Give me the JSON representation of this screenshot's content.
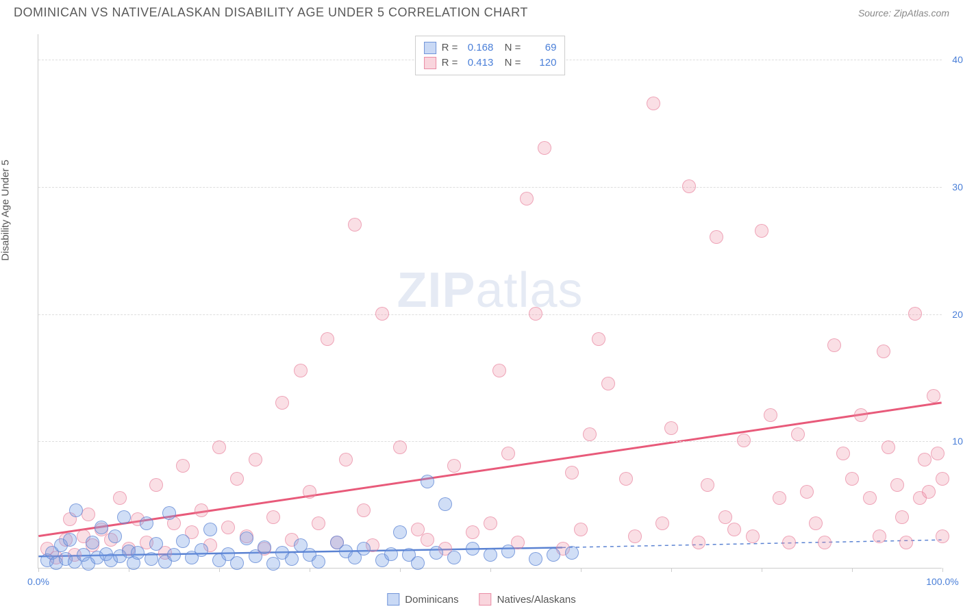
{
  "header": {
    "title": "DOMINICAN VS NATIVE/ALASKAN DISABILITY AGE UNDER 5 CORRELATION CHART",
    "source": "Source: ZipAtlas.com"
  },
  "y_axis_label": "Disability Age Under 5",
  "watermark": {
    "part1": "ZIP",
    "part2": "atlas"
  },
  "chart": {
    "type": "scatter",
    "xlim": [
      0,
      100
    ],
    "ylim": [
      0,
      42
    ],
    "x_ticks": [
      0,
      10,
      20,
      30,
      40,
      50,
      60,
      70,
      80,
      90,
      100
    ],
    "x_tick_labels": {
      "0": "0.0%",
      "100": "100.0%"
    },
    "y_ticks": [
      10,
      20,
      30,
      40
    ],
    "y_tick_labels": {
      "10": "10.0%",
      "20": "20.0%",
      "30": "30.0%",
      "40": "40.0%"
    },
    "background_color": "#ffffff",
    "grid_color": "#dddddd",
    "axis_color": "#cccccc",
    "marker_radius": 10,
    "series": [
      {
        "name": "Dominicans",
        "color_fill": "rgba(120,160,230,0.35)",
        "color_stroke": "rgba(90,130,210,0.7)",
        "R": "0.168",
        "N": "69",
        "trend": {
          "x1": 0,
          "y1": 0.9,
          "x2": 58,
          "y2": 1.6,
          "dash_after_x": 58,
          "x3": 100,
          "y3": 2.2,
          "stroke": "#5a82d2",
          "width": 2.5
        },
        "points": [
          [
            1,
            0.6
          ],
          [
            1.5,
            1.2
          ],
          [
            2,
            0.4
          ],
          [
            2.5,
            1.8
          ],
          [
            3,
            0.7
          ],
          [
            3.5,
            2.2
          ],
          [
            4,
            0.5
          ],
          [
            4.2,
            4.5
          ],
          [
            5,
            1.0
          ],
          [
            5.5,
            0.3
          ],
          [
            6,
            2.0
          ],
          [
            6.5,
            0.8
          ],
          [
            7,
            3.2
          ],
          [
            7.5,
            1.1
          ],
          [
            8,
            0.6
          ],
          [
            8.5,
            2.5
          ],
          [
            9,
            0.9
          ],
          [
            9.5,
            4.0
          ],
          [
            10,
            1.3
          ],
          [
            10.5,
            0.4
          ],
          [
            11,
            1.2
          ],
          [
            12,
            3.5
          ],
          [
            12.5,
            0.7
          ],
          [
            13,
            1.9
          ],
          [
            14,
            0.5
          ],
          [
            14.5,
            4.3
          ],
          [
            15,
            1.0
          ],
          [
            16,
            2.1
          ],
          [
            17,
            0.8
          ],
          [
            18,
            1.4
          ],
          [
            19,
            3.0
          ],
          [
            20,
            0.6
          ],
          [
            21,
            1.1
          ],
          [
            22,
            0.4
          ],
          [
            23,
            2.3
          ],
          [
            24,
            0.9
          ],
          [
            25,
            1.6
          ],
          [
            26,
            0.3
          ],
          [
            27,
            1.2
          ],
          [
            28,
            0.7
          ],
          [
            29,
            1.8
          ],
          [
            30,
            1.0
          ],
          [
            31,
            0.5
          ],
          [
            33,
            2.0
          ],
          [
            34,
            1.3
          ],
          [
            35,
            0.8
          ],
          [
            36,
            1.5
          ],
          [
            38,
            0.6
          ],
          [
            39,
            1.1
          ],
          [
            40,
            2.8
          ],
          [
            41,
            1.0
          ],
          [
            42,
            0.4
          ],
          [
            43,
            6.8
          ],
          [
            44,
            1.2
          ],
          [
            45,
            5.0
          ],
          [
            46,
            0.8
          ],
          [
            48,
            1.5
          ],
          [
            50,
            1.0
          ],
          [
            52,
            1.3
          ],
          [
            55,
            0.7
          ],
          [
            57,
            1.0
          ],
          [
            59,
            1.2
          ]
        ]
      },
      {
        "name": "Natives/Alaskans",
        "color_fill": "rgba(240,150,170,0.30)",
        "color_stroke": "rgba(230,120,150,0.6)",
        "R": "0.413",
        "N": "120",
        "trend": {
          "x1": 0,
          "y1": 2.5,
          "x2": 100,
          "y2": 13.0,
          "stroke": "#e85a7a",
          "width": 3
        },
        "points": [
          [
            1,
            1.5
          ],
          [
            2,
            0.8
          ],
          [
            3,
            2.2
          ],
          [
            3.5,
            3.8
          ],
          [
            4,
            1.0
          ],
          [
            5,
            2.5
          ],
          [
            5.5,
            4.2
          ],
          [
            6,
            1.8
          ],
          [
            7,
            3.0
          ],
          [
            8,
            2.2
          ],
          [
            9,
            5.5
          ],
          [
            10,
            1.5
          ],
          [
            11,
            3.8
          ],
          [
            12,
            2.0
          ],
          [
            13,
            6.5
          ],
          [
            14,
            1.2
          ],
          [
            15,
            3.5
          ],
          [
            16,
            8.0
          ],
          [
            17,
            2.8
          ],
          [
            18,
            4.5
          ],
          [
            19,
            1.8
          ],
          [
            20,
            9.5
          ],
          [
            21,
            3.2
          ],
          [
            22,
            7.0
          ],
          [
            23,
            2.5
          ],
          [
            24,
            8.5
          ],
          [
            25,
            1.5
          ],
          [
            26,
            4.0
          ],
          [
            27,
            13.0
          ],
          [
            28,
            2.2
          ],
          [
            29,
            15.5
          ],
          [
            30,
            6.0
          ],
          [
            31,
            3.5
          ],
          [
            32,
            18.0
          ],
          [
            33,
            2.0
          ],
          [
            34,
            8.5
          ],
          [
            35,
            27.0
          ],
          [
            36,
            4.5
          ],
          [
            37,
            1.8
          ],
          [
            38,
            20.0
          ],
          [
            40,
            9.5
          ],
          [
            42,
            3.0
          ],
          [
            43,
            2.2
          ],
          [
            45,
            1.5
          ],
          [
            46,
            8.0
          ],
          [
            48,
            2.8
          ],
          [
            50,
            3.5
          ],
          [
            51,
            15.5
          ],
          [
            52,
            9.0
          ],
          [
            53,
            2.0
          ],
          [
            54,
            29.0
          ],
          [
            55,
            20.0
          ],
          [
            56,
            33.0
          ],
          [
            58,
            1.5
          ],
          [
            59,
            7.5
          ],
          [
            60,
            3.0
          ],
          [
            61,
            10.5
          ],
          [
            62,
            18.0
          ],
          [
            63,
            14.5
          ],
          [
            65,
            7.0
          ],
          [
            66,
            2.5
          ],
          [
            68,
            36.5
          ],
          [
            69,
            3.5
          ],
          [
            70,
            11.0
          ],
          [
            72,
            30.0
          ],
          [
            73,
            2.0
          ],
          [
            74,
            6.5
          ],
          [
            75,
            26.0
          ],
          [
            76,
            4.0
          ],
          [
            77,
            3.0
          ],
          [
            78,
            10.0
          ],
          [
            79,
            2.5
          ],
          [
            80,
            26.5
          ],
          [
            81,
            12.0
          ],
          [
            82,
            5.5
          ],
          [
            83,
            2.0
          ],
          [
            84,
            10.5
          ],
          [
            85,
            6.0
          ],
          [
            86,
            3.5
          ],
          [
            87,
            2.0
          ],
          [
            88,
            17.5
          ],
          [
            89,
            9.0
          ],
          [
            90,
            7.0
          ],
          [
            91,
            12.0
          ],
          [
            92,
            5.5
          ],
          [
            93,
            2.5
          ],
          [
            93.5,
            17.0
          ],
          [
            94,
            9.5
          ],
          [
            95,
            6.5
          ],
          [
            95.5,
            4.0
          ],
          [
            96,
            2.0
          ],
          [
            97,
            20.0
          ],
          [
            97.5,
            5.5
          ],
          [
            98,
            8.5
          ],
          [
            98.5,
            6.0
          ],
          [
            99,
            13.5
          ],
          [
            99.5,
            9.0
          ],
          [
            100,
            7.0
          ],
          [
            100,
            2.5
          ]
        ]
      }
    ]
  },
  "legend_bottom": [
    {
      "swatch": "blue",
      "label": "Dominicans"
    },
    {
      "swatch": "pink",
      "label": "Natives/Alaskans"
    }
  ]
}
